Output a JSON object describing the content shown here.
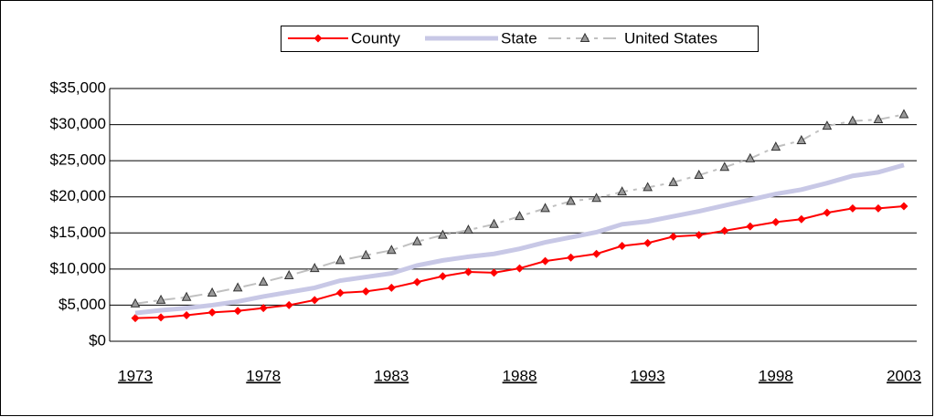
{
  "chart_data": {
    "type": "line",
    "x": [
      1973,
      1974,
      1975,
      1976,
      1977,
      1978,
      1979,
      1980,
      1981,
      1982,
      1983,
      1984,
      1985,
      1986,
      1987,
      1988,
      1989,
      1990,
      1991,
      1992,
      1993,
      1994,
      1995,
      1996,
      1997,
      1998,
      1999,
      2000,
      2001,
      2002,
      2003
    ],
    "series": [
      {
        "name": "County",
        "color": "#ff0000",
        "marker": "diamond",
        "values": [
          3200,
          3300,
          3600,
          4000,
          4200,
          4600,
          5000,
          5700,
          6700,
          6900,
          7400,
          8200,
          9000,
          9600,
          9500,
          10100,
          11100,
          11600,
          12100,
          13200,
          13600,
          14500,
          14700,
          15300,
          15900,
          16500,
          16900,
          17800,
          18400,
          18400,
          18700
        ]
      },
      {
        "name": "State",
        "color": "#c8c8e6",
        "marker": "none",
        "values": [
          3900,
          4300,
          4600,
          5000,
          5500,
          6200,
          6800,
          7400,
          8400,
          8900,
          9400,
          10500,
          11200,
          11700,
          12100,
          12800,
          13700,
          14400,
          15100,
          16200,
          16600,
          17300,
          18000,
          18800,
          19600,
          20400,
          21000,
          21900,
          22900,
          23400,
          24400
        ]
      },
      {
        "name": "United States",
        "color": "#c0c0c0",
        "marker": "triangle",
        "values": [
          5200,
          5700,
          6100,
          6700,
          7400,
          8200,
          9100,
          10100,
          11200,
          11900,
          12600,
          13800,
          14700,
          15400,
          16200,
          17300,
          18400,
          19400,
          19800,
          20700,
          21300,
          22000,
          23000,
          24100,
          25300,
          26900,
          27800,
          29800,
          30500,
          30700,
          31400
        ]
      }
    ],
    "xlim": [
      1972,
      2003.5
    ],
    "xticks": [
      1973,
      1978,
      1983,
      1988,
      1993,
      1998,
      2003
    ],
    "ylim": [
      0,
      35000
    ],
    "yticks": [
      {
        "value": 0,
        "label": "$0"
      },
      {
        "value": 5000,
        "label": "$5,000"
      },
      {
        "value": 10000,
        "label": "$10,000"
      },
      {
        "value": 15000,
        "label": "$15,000"
      },
      {
        "value": 20000,
        "label": "$20,000"
      },
      {
        "value": 25000,
        "label": "$25,000"
      },
      {
        "value": 30000,
        "label": "$30,000"
      },
      {
        "value": 35000,
        "label": "$35,000"
      }
    ],
    "grid": true,
    "legend": "top"
  }
}
